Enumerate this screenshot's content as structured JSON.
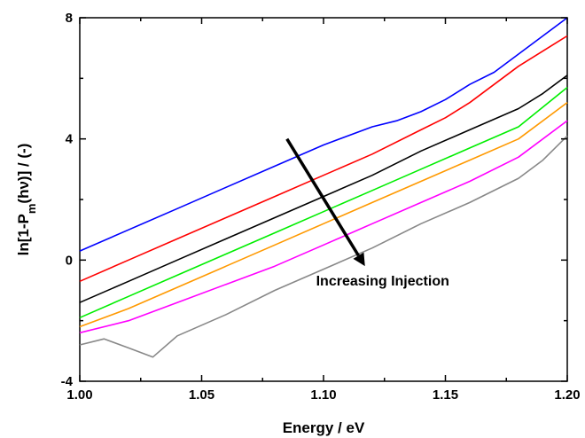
{
  "chart_data": {
    "type": "line",
    "xlabel": "Energy / eV",
    "ylabel_parts": {
      "pre": "ln[1-P",
      "sub": "m",
      "post": "(hν)] / (-)"
    },
    "xlim": [
      1.0,
      1.2
    ],
    "ylim": [
      -4,
      8
    ],
    "xticks": [
      "1.00",
      "1.05",
      "1.10",
      "1.15",
      "1.20"
    ],
    "yticks": [
      "-4",
      "0",
      "4",
      "8"
    ],
    "grid": false,
    "legend": "none",
    "annotation": {
      "text": "Increasing Injection",
      "arrow_from": [
        1.085,
        4.0
      ],
      "arrow_to": [
        1.117,
        -0.2
      ]
    },
    "series": [
      {
        "color": "#0000ff",
        "x": [
          1.0,
          1.02,
          1.04,
          1.06,
          1.08,
          1.1,
          1.12,
          1.13,
          1.14,
          1.15,
          1.16,
          1.17,
          1.18,
          1.19,
          1.2
        ],
        "y": [
          0.3,
          1.0,
          1.7,
          2.4,
          3.1,
          3.8,
          4.4,
          4.6,
          4.9,
          5.3,
          5.8,
          6.2,
          6.8,
          7.4,
          8.0
        ]
      },
      {
        "color": "#ff0000",
        "x": [
          1.0,
          1.02,
          1.04,
          1.06,
          1.08,
          1.1,
          1.12,
          1.14,
          1.15,
          1.16,
          1.17,
          1.18,
          1.19,
          1.2
        ],
        "y": [
          -0.7,
          0.0,
          0.7,
          1.4,
          2.1,
          2.8,
          3.5,
          4.3,
          4.7,
          5.2,
          5.8,
          6.4,
          6.9,
          7.4
        ]
      },
      {
        "color": "#000000",
        "x": [
          1.0,
          1.02,
          1.04,
          1.06,
          1.08,
          1.1,
          1.12,
          1.14,
          1.16,
          1.18,
          1.19,
          1.2
        ],
        "y": [
          -1.4,
          -0.7,
          0.0,
          0.7,
          1.4,
          2.1,
          2.8,
          3.6,
          4.3,
          5.0,
          5.5,
          6.1
        ]
      },
      {
        "color": "#00ee00",
        "x": [
          1.0,
          1.02,
          1.04,
          1.06,
          1.08,
          1.1,
          1.12,
          1.14,
          1.16,
          1.18,
          1.2
        ],
        "y": [
          -1.9,
          -1.2,
          -0.5,
          0.2,
          0.9,
          1.6,
          2.3,
          3.0,
          3.7,
          4.4,
          5.7
        ]
      },
      {
        "color": "#ff9900",
        "x": [
          1.0,
          1.02,
          1.04,
          1.06,
          1.08,
          1.1,
          1.12,
          1.14,
          1.16,
          1.18,
          1.2
        ],
        "y": [
          -2.2,
          -1.6,
          -0.9,
          -0.2,
          0.5,
          1.2,
          1.9,
          2.6,
          3.3,
          4.0,
          5.2
        ]
      },
      {
        "color": "#ff00ff",
        "x": [
          1.0,
          1.02,
          1.04,
          1.06,
          1.08,
          1.1,
          1.12,
          1.14,
          1.16,
          1.18,
          1.2
        ],
        "y": [
          -2.4,
          -2.0,
          -1.4,
          -0.8,
          -0.2,
          0.5,
          1.2,
          1.9,
          2.6,
          3.4,
          4.6
        ]
      },
      {
        "color": "#888888",
        "x": [
          1.0,
          1.01,
          1.02,
          1.03,
          1.04,
          1.06,
          1.08,
          1.1,
          1.12,
          1.14,
          1.16,
          1.18,
          1.19,
          1.2
        ],
        "y": [
          -2.8,
          -2.6,
          -2.9,
          -3.2,
          -2.5,
          -1.8,
          -1.0,
          -0.3,
          0.4,
          1.2,
          1.9,
          2.7,
          3.3,
          4.1
        ]
      }
    ]
  }
}
